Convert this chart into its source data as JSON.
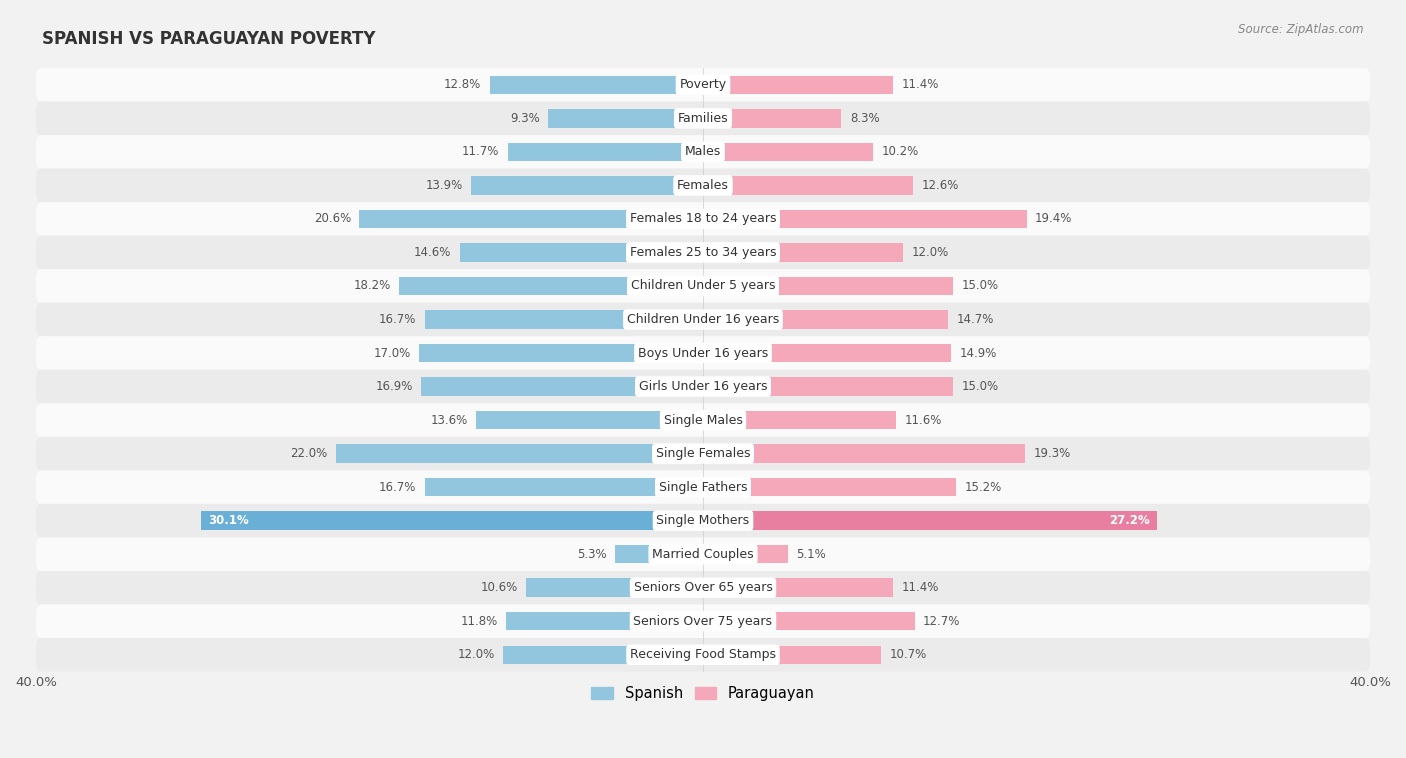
{
  "title": "SPANISH VS PARAGUAYAN POVERTY",
  "source": "Source: ZipAtlas.com",
  "categories": [
    "Poverty",
    "Families",
    "Males",
    "Females",
    "Females 18 to 24 years",
    "Females 25 to 34 years",
    "Children Under 5 years",
    "Children Under 16 years",
    "Boys Under 16 years",
    "Girls Under 16 years",
    "Single Males",
    "Single Females",
    "Single Fathers",
    "Single Mothers",
    "Married Couples",
    "Seniors Over 65 years",
    "Seniors Over 75 years",
    "Receiving Food Stamps"
  ],
  "spanish_values": [
    12.8,
    9.3,
    11.7,
    13.9,
    20.6,
    14.6,
    18.2,
    16.7,
    17.0,
    16.9,
    13.6,
    22.0,
    16.7,
    30.1,
    5.3,
    10.6,
    11.8,
    12.0
  ],
  "paraguayan_values": [
    11.4,
    8.3,
    10.2,
    12.6,
    19.4,
    12.0,
    15.0,
    14.7,
    14.9,
    15.0,
    11.6,
    19.3,
    15.2,
    27.2,
    5.1,
    11.4,
    12.7,
    10.7
  ],
  "spanish_color": "#92c5de",
  "paraguayan_color": "#f4a8ba",
  "paraguayan_mothers_color": "#e87fa0",
  "spanish_mothers_color": "#6aafd6",
  "background_color": "#f2f2f2",
  "row_odd_color": "#fafafa",
  "row_even_color": "#ebebeb",
  "axis_max": 40.0,
  "legend_spanish": "Spanish",
  "legend_paraguayan": "Paraguayan",
  "bar_height": 0.55,
  "label_fontsize": 9,
  "title_fontsize": 12,
  "value_fontsize": 8.5,
  "cat_label_fontsize": 9
}
